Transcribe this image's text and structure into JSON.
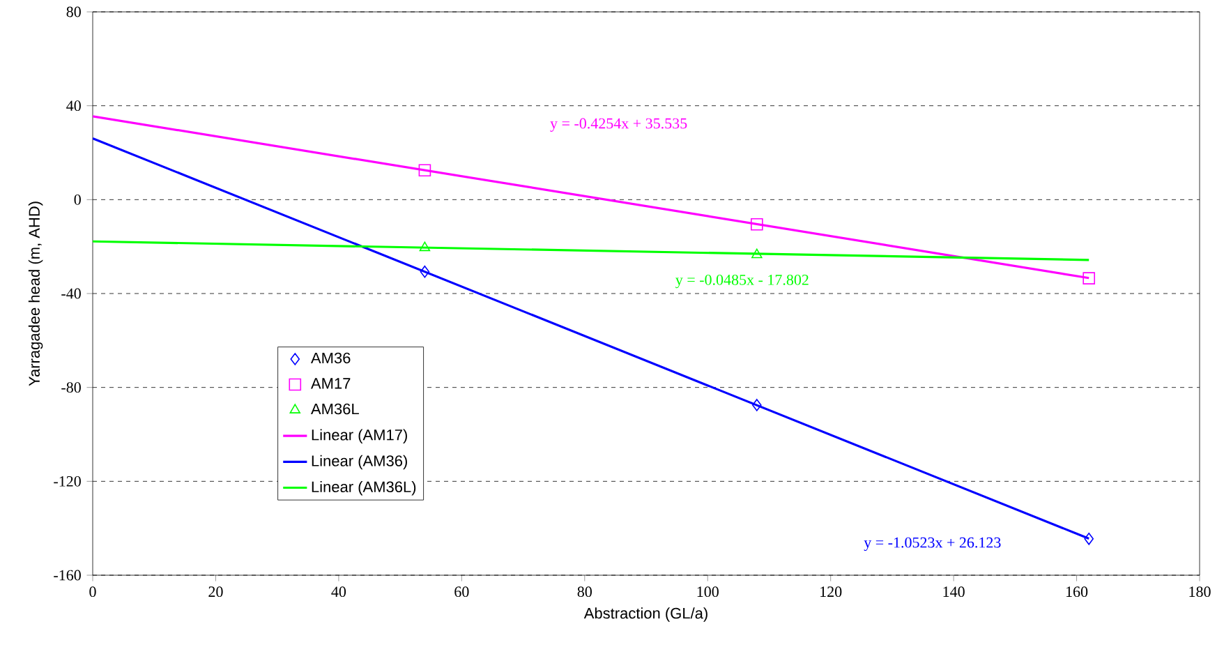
{
  "chart_data": {
    "type": "scatter",
    "xlabel": "Abstraction (GL/a)",
    "ylabel": "Yarragadee head (m, AHD)",
    "xlim": [
      0,
      180
    ],
    "ylim": [
      -160,
      80
    ],
    "xticks": [
      0,
      20,
      40,
      60,
      80,
      100,
      120,
      140,
      160,
      180
    ],
    "yticks": [
      -160,
      -120,
      -80,
      -40,
      0,
      40,
      80
    ],
    "grid": "y",
    "legend": "bottom left",
    "series": [
      {
        "name": "AM36",
        "marker": "diamond",
        "color": "#0000ff",
        "x": [
          54,
          108,
          162
        ],
        "values": [
          -30.7,
          -87.5,
          -144.5
        ]
      },
      {
        "name": "AM17",
        "marker": "square",
        "color": "#ff00ff",
        "x": [
          54,
          108,
          162
        ],
        "values": [
          12.5,
          -10.5,
          -33.5
        ]
      },
      {
        "name": "AM36L",
        "marker": "triangle",
        "color": "#00ff00",
        "x": [
          54,
          108
        ],
        "values": [
          -20.5,
          -23.5
        ]
      },
      {
        "name": "Linear (AM17)",
        "type": "line",
        "color": "#ff00ff",
        "x": [
          0,
          162
        ],
        "values": [
          35.5,
          -33.4
        ]
      },
      {
        "name": "Linear (AM36)",
        "type": "line",
        "color": "#0000ff",
        "x": [
          0,
          162
        ],
        "values": [
          26.1,
          -144.4
        ]
      },
      {
        "name": "Linear (AM36L)",
        "type": "line",
        "color": "#00ff00",
        "x": [
          0,
          162
        ],
        "values": [
          -17.8,
          -25.7
        ]
      }
    ],
    "annotations": [
      "y = -0.4254x + 35.535",
      "y = -1.0523x + 26.123",
      "y = -0.0485x - 17.802"
    ]
  }
}
